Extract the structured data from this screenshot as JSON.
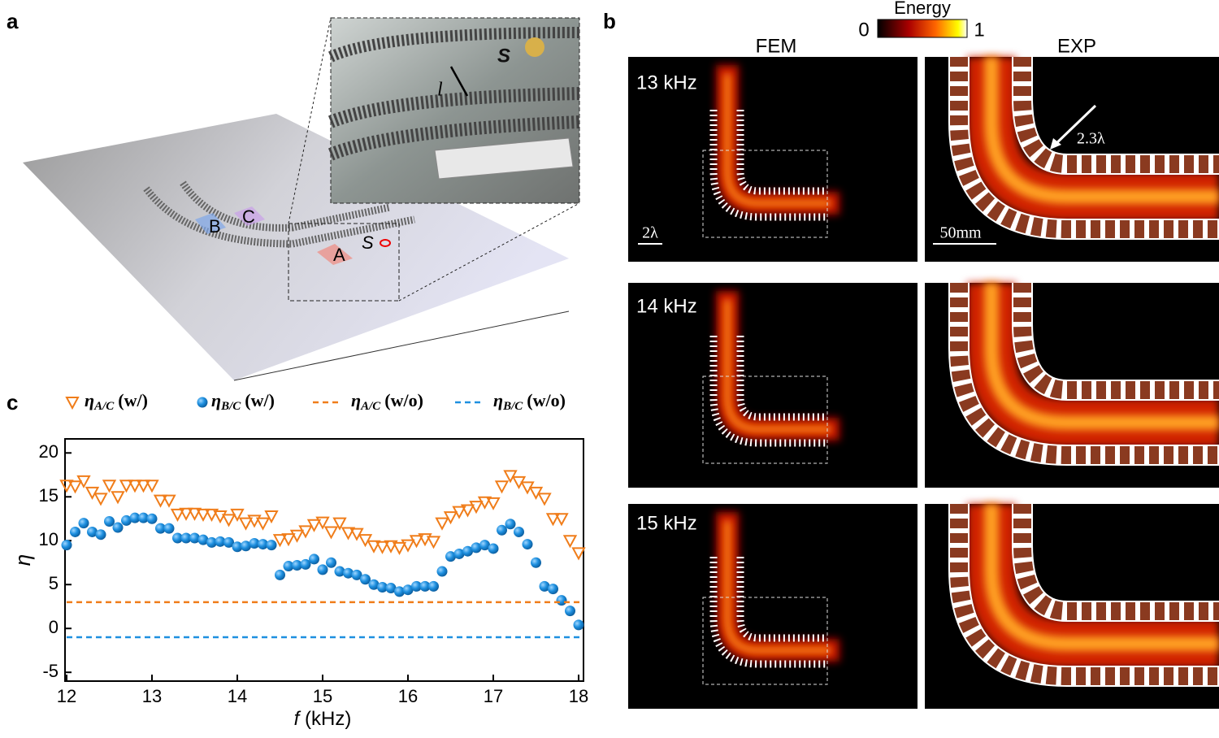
{
  "panel_labels": [
    "a",
    "b",
    "c"
  ],
  "panel_a": {
    "labels": [
      "A",
      "B",
      "C",
      "S"
    ],
    "inset_labels": [
      "S",
      "l"
    ]
  },
  "panel_b": {
    "colorbar_title": "Energy",
    "colorbar_min": 0,
    "colorbar_max": 1,
    "columns": [
      "FEM",
      "EXP"
    ],
    "rows": [
      "13 kHz",
      "14 kHz",
      "15 kHz"
    ],
    "scale_fem": "2λ",
    "scale_exp": "50mm",
    "annotation": "2.3λ"
  },
  "chart_data": {
    "type": "scatter",
    "xlabel_symbol": "f",
    "xlabel_unit": "(kHz)",
    "ylabel": "η",
    "xlim": [
      12,
      18
    ],
    "ylim": [
      -6,
      21.6
    ],
    "xticks": [
      12,
      13,
      14,
      15,
      16,
      17,
      18
    ],
    "yticks": [
      -5,
      0,
      5,
      10,
      15,
      20
    ],
    "x": [
      12.0,
      12.1,
      12.2,
      12.3,
      12.4,
      12.5,
      12.6,
      12.7,
      12.8,
      12.9,
      13.0,
      13.1,
      13.2,
      13.3,
      13.4,
      13.5,
      13.6,
      13.7,
      13.8,
      13.9,
      14.0,
      14.1,
      14.2,
      14.3,
      14.4,
      14.5,
      14.6,
      14.7,
      14.8,
      14.9,
      15.0,
      15.1,
      15.2,
      15.3,
      15.4,
      15.5,
      15.6,
      15.7,
      15.8,
      15.9,
      16.0,
      16.1,
      16.2,
      16.3,
      16.4,
      16.5,
      16.6,
      16.7,
      16.8,
      16.9,
      17.0,
      17.1,
      17.2,
      17.3,
      17.4,
      17.5,
      17.6,
      17.7,
      17.8,
      17.9,
      18.0
    ],
    "series": [
      {
        "name": "η",
        "name_sub": "A/C",
        "name_suffix": "(w/)",
        "color": "#f07d1a",
        "marker": "triangle-down",
        "values": [
          16.3,
          16.2,
          16.8,
          15.5,
          14.8,
          16.3,
          15.0,
          16.3,
          16.3,
          16.3,
          16.3,
          14.6,
          14.6,
          13.0,
          13.1,
          13.1,
          13.0,
          13.0,
          12.8,
          12.4,
          13.0,
          12.0,
          12.3,
          12.0,
          12.8,
          10.1,
          10.2,
          10.6,
          11.1,
          11.8,
          12.1,
          11.0,
          12.0,
          10.9,
          10.8,
          10.1,
          9.4,
          9.3,
          9.4,
          9.2,
          9.5,
          10.0,
          10.2,
          9.9,
          12.0,
          12.7,
          13.3,
          13.5,
          13.9,
          14.4,
          14.3,
          16.2,
          17.4,
          16.7,
          16.1,
          15.5,
          14.8,
          12.5,
          12.5,
          10.0,
          8.6
        ]
      },
      {
        "name": "η",
        "name_sub": "B/C",
        "name_suffix": "(w/)",
        "color": "#1e90e0",
        "marker": "circle",
        "values": [
          9.5,
          11.0,
          12.0,
          11.0,
          10.7,
          12.2,
          11.5,
          12.3,
          12.6,
          12.6,
          12.5,
          11.4,
          11.4,
          10.3,
          10.3,
          10.3,
          10.1,
          9.8,
          9.9,
          9.8,
          9.3,
          9.4,
          9.7,
          9.6,
          9.5,
          6.1,
          7.1,
          7.2,
          7.3,
          7.9,
          6.7,
          7.5,
          6.5,
          6.3,
          6.1,
          5.6,
          5.0,
          4.7,
          4.6,
          4.2,
          4.4,
          4.8,
          4.8,
          4.8,
          6.5,
          8.2,
          8.5,
          8.8,
          9.2,
          9.5,
          9.1,
          11.2,
          11.9,
          11.0,
          9.6,
          7.5,
          4.8,
          4.5,
          3.2,
          2.0,
          0.4
        ]
      },
      {
        "name": "η",
        "name_sub": "A/C",
        "name_suffix": "(w/o)",
        "color": "#f07d1a",
        "style": "dashed",
        "value": 3
      },
      {
        "name": "η",
        "name_sub": "B/C",
        "name_suffix": "(w/o)",
        "color": "#1e90e0",
        "style": "dashed",
        "value": -1
      }
    ]
  }
}
